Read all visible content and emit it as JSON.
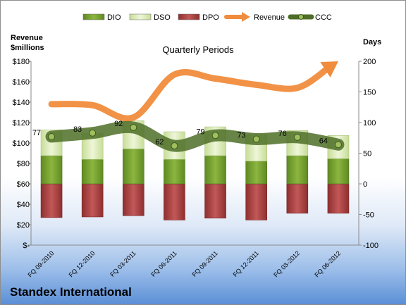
{
  "footer": {
    "company": "Standex International"
  },
  "chart_data": {
    "type": "bar",
    "title": "Quarterly Periods",
    "left_axis": {
      "label_line1": "Revenue",
      "label_line2": "$millions",
      "min": 0,
      "max": 180,
      "step": 20,
      "tick_labels": [
        "$-",
        "$20",
        "$40",
        "$60",
        "$80",
        "$100",
        "$120",
        "$140",
        "$160",
        "$180"
      ]
    },
    "right_axis": {
      "label": "Days",
      "min": -100,
      "max": 200,
      "step": 50,
      "tick_labels": [
        "-100",
        "-50",
        "0",
        "50",
        "100",
        "150",
        "200"
      ]
    },
    "categories": [
      "FQ 09-2010",
      "FQ 12-2010",
      "FQ 03-2011",
      "FQ 06-2011",
      "FQ 09-2011",
      "FQ 12-2011",
      "FQ 03-2012",
      "FQ 06-2012"
    ],
    "legend_position": "top",
    "series": [
      {
        "name": "DIO",
        "kind": "bar-stack",
        "axis": "right",
        "color": "#77a030",
        "values": [
          46,
          40,
          57,
          40,
          46,
          37,
          46,
          41
        ]
      },
      {
        "name": "DSO",
        "kind": "bar-stack",
        "axis": "right",
        "color": "#d9ebb0",
        "values": [
          42,
          42,
          46,
          45,
          47,
          43,
          41,
          38
        ]
      },
      {
        "name": "DPO",
        "kind": "bar",
        "axis": "right",
        "color": "#b04545",
        "values": [
          -55,
          -54,
          -52,
          -59,
          -56,
          -59,
          -48,
          -48
        ]
      },
      {
        "name": "Revenue",
        "kind": "line",
        "axis": "left",
        "color": "#f08c3c",
        "values": [
          138,
          137,
          125,
          167,
          163,
          157,
          154,
          180
        ]
      },
      {
        "name": "CCC",
        "kind": "line",
        "axis": "right",
        "color": "#56782e",
        "values": [
          77,
          83,
          92,
          62,
          79,
          73,
          76,
          64
        ],
        "labels": [
          "77",
          "83",
          "92",
          "62",
          "79",
          "73",
          "76",
          "64"
        ]
      }
    ],
    "grid": false
  }
}
